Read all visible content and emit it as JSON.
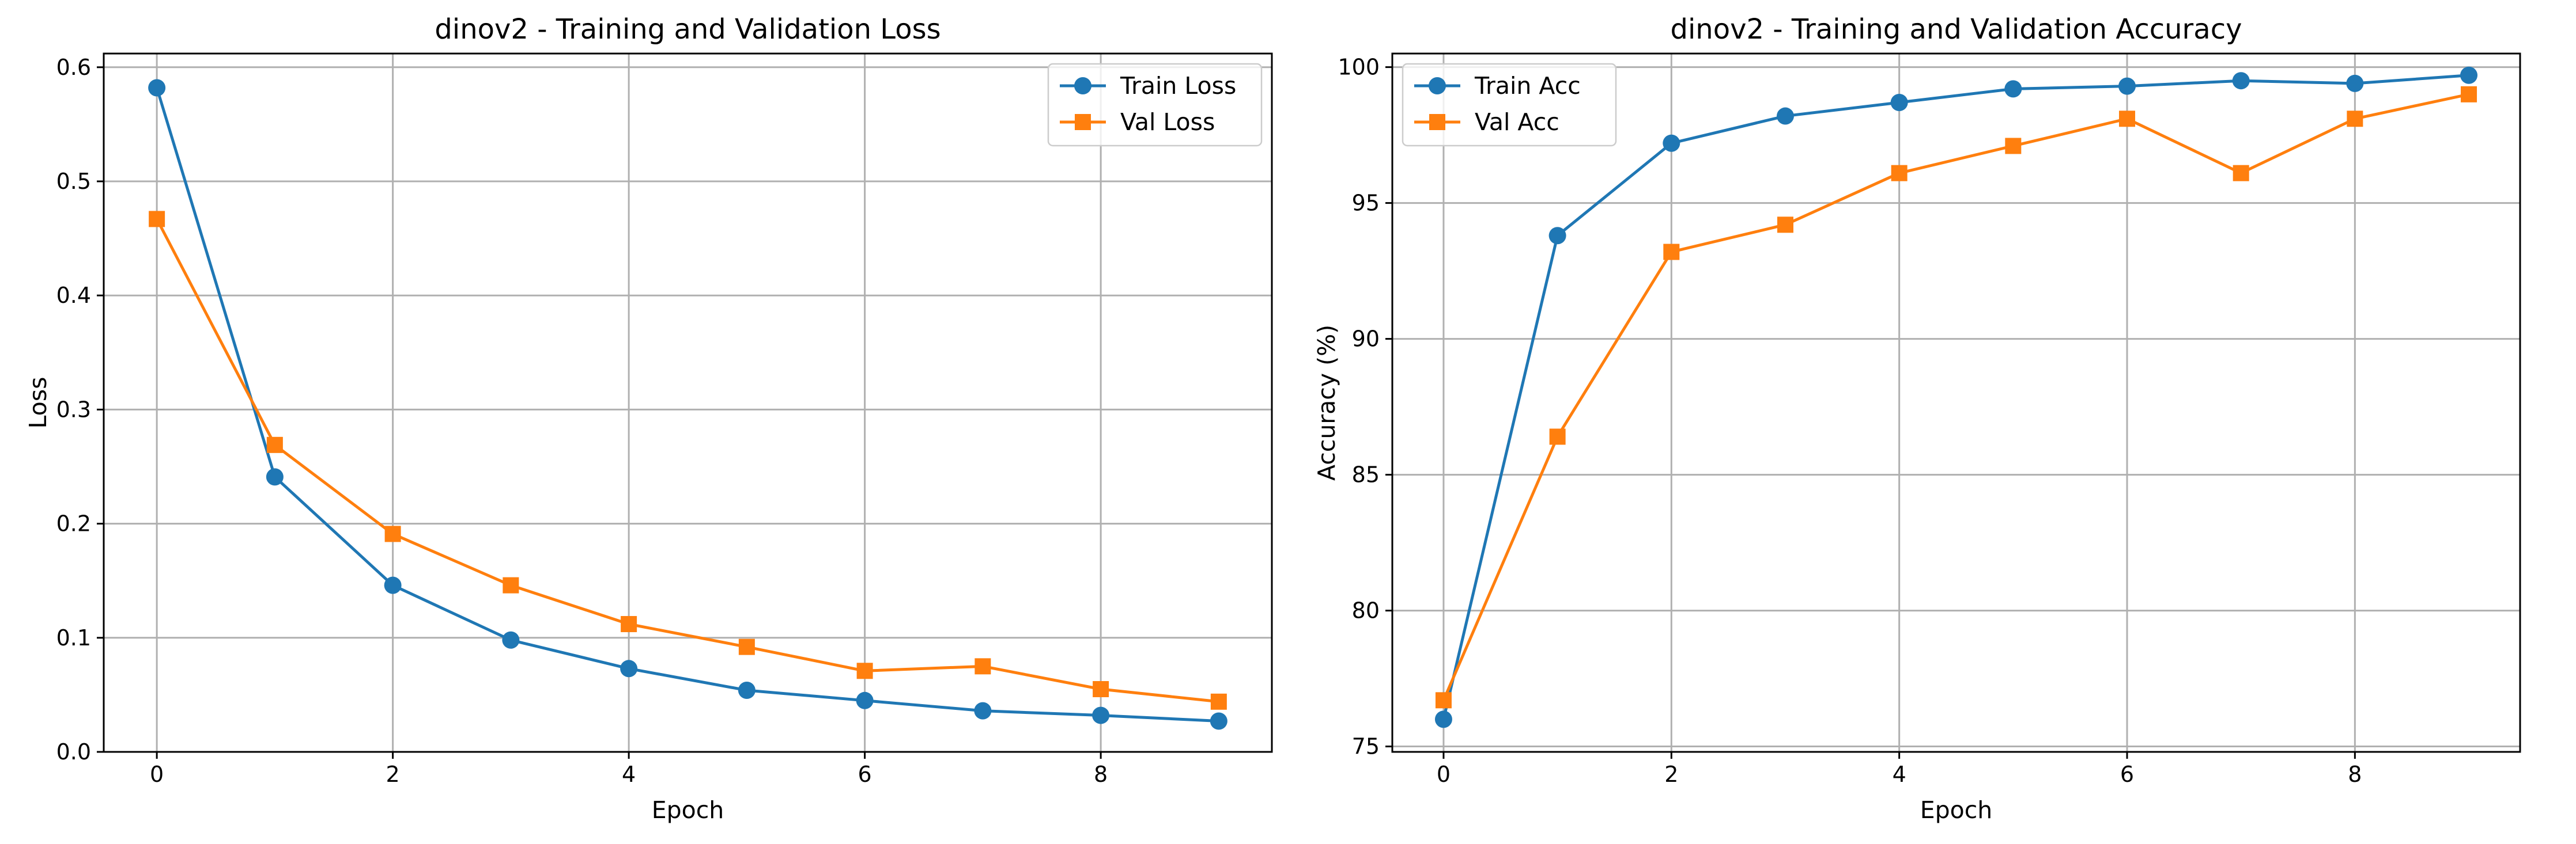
{
  "chart_data": [
    {
      "type": "line",
      "title": "dinov2 - Training and Validation Loss",
      "xlabel": "Epoch",
      "ylabel": "Loss",
      "x": [
        0,
        1,
        2,
        3,
        4,
        5,
        6,
        7,
        8,
        9
      ],
      "xlim": [
        -0.45,
        9.45
      ],
      "ylim": [
        0.0,
        0.612
      ],
      "xticks": [
        0,
        2,
        4,
        6,
        8
      ],
      "yticks": [
        0.0,
        0.1,
        0.2,
        0.3,
        0.4,
        0.5,
        0.6
      ],
      "xtick_labels": [
        "0",
        "2",
        "4",
        "6",
        "8"
      ],
      "ytick_labels": [
        "0.0",
        "0.1",
        "0.2",
        "0.3",
        "0.4",
        "0.5",
        "0.6"
      ],
      "grid": true,
      "legend_position": "upper right",
      "series": [
        {
          "name": "Train Loss",
          "color": "#1f77b4",
          "marker": "circle",
          "values": [
            0.582,
            0.241,
            0.146,
            0.098,
            0.073,
            0.054,
            0.045,
            0.036,
            0.032,
            0.027
          ]
        },
        {
          "name": "Val Loss",
          "color": "#ff7f0e",
          "marker": "square",
          "values": [
            0.467,
            0.269,
            0.191,
            0.146,
            0.112,
            0.092,
            0.071,
            0.075,
            0.055,
            0.044
          ]
        }
      ]
    },
    {
      "type": "line",
      "title": "dinov2 - Training and Validation Accuracy",
      "xlabel": "Epoch",
      "ylabel": "Accuracy (%)",
      "x": [
        0,
        1,
        2,
        3,
        4,
        5,
        6,
        7,
        8,
        9
      ],
      "xlim": [
        -0.45,
        9.45
      ],
      "ylim": [
        74.8,
        100.5
      ],
      "xticks": [
        0,
        2,
        4,
        6,
        8
      ],
      "yticks": [
        75,
        80,
        85,
        90,
        95,
        100
      ],
      "xtick_labels": [
        "0",
        "2",
        "4",
        "6",
        "8"
      ],
      "ytick_labels": [
        "75",
        "80",
        "85",
        "90",
        "95",
        "100"
      ],
      "grid": true,
      "legend_position": "upper left",
      "series": [
        {
          "name": "Train Acc",
          "color": "#1f77b4",
          "marker": "circle",
          "values": [
            76.0,
            93.8,
            97.2,
            98.2,
            98.7,
            99.2,
            99.3,
            99.5,
            99.4,
            99.7
          ]
        },
        {
          "name": "Val Acc",
          "color": "#ff7f0e",
          "marker": "square",
          "values": [
            76.7,
            86.4,
            93.2,
            94.2,
            96.1,
            97.1,
            98.1,
            96.1,
            98.1,
            99.0
          ]
        }
      ]
    }
  ]
}
